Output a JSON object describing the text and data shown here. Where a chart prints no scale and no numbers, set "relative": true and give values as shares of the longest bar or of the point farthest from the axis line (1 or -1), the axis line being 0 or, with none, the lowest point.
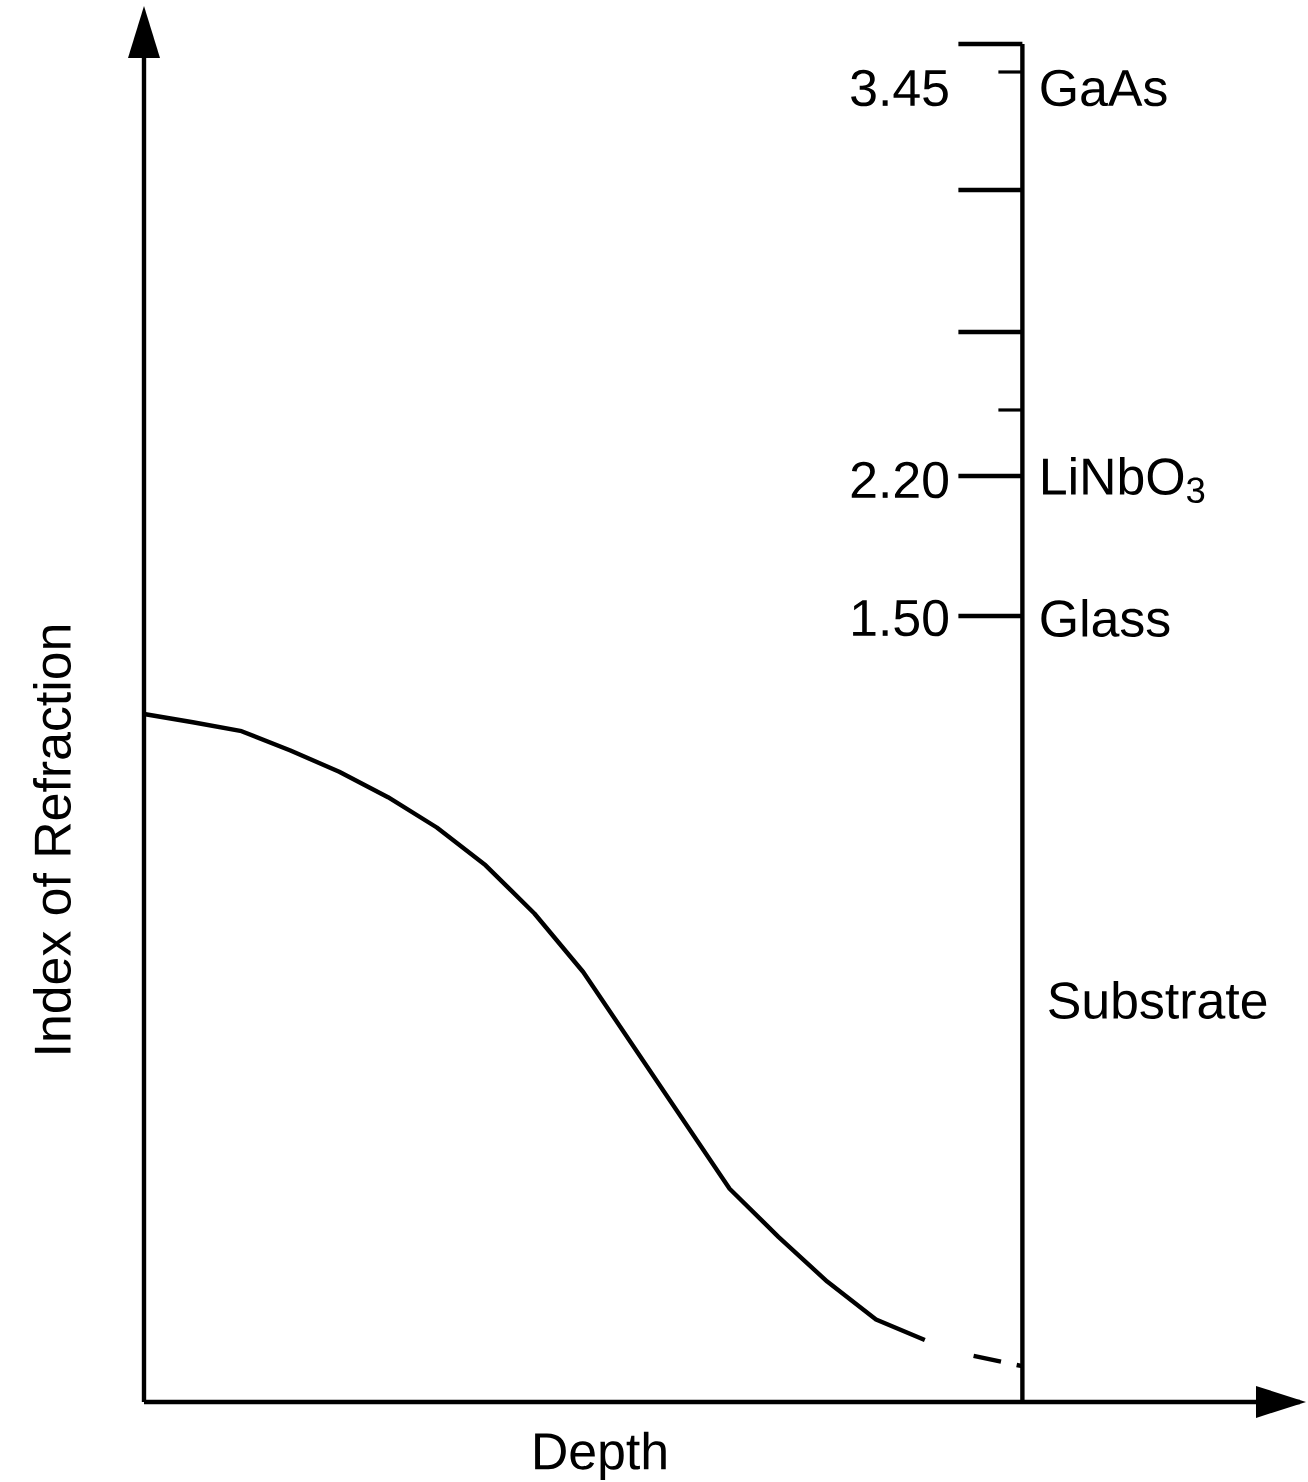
{
  "chart_data": {
    "type": "line",
    "relative": true,
    "xlabel": "Depth",
    "ylabel": "Index of Refraction",
    "categories": [
      null,
      null,
      null,
      null,
      null,
      null,
      null,
      null,
      null,
      null,
      null,
      null,
      null,
      null,
      null,
      null,
      null,
      null,
      null
    ],
    "series": [
      {
        "color": "#000000",
        "line_style": "solid",
        "values": [
          1.0,
          0.988,
          0.975,
          0.947,
          0.916,
          0.879,
          0.835,
          0.78,
          0.71,
          0.625,
          0.52,
          0.415,
          0.31,
          0.24,
          0.175,
          0.12,
          0.09,
          null,
          null
        ]
      },
      {
        "color": "#000000",
        "line_style": "dashed",
        "values": [
          null,
          null,
          null,
          null,
          null,
          null,
          null,
          null,
          null,
          null,
          null,
          null,
          null,
          null,
          null,
          null,
          null,
          0.067,
          0.052
        ]
      }
    ],
    "annotations": [
      "3.45",
      "GaAs",
      "2.20",
      "LiNbO$_{3}$",
      "1.50",
      "Glass",
      "Substrate"
    ],
    "marker": "none",
    "tick_labels": false
  }
}
